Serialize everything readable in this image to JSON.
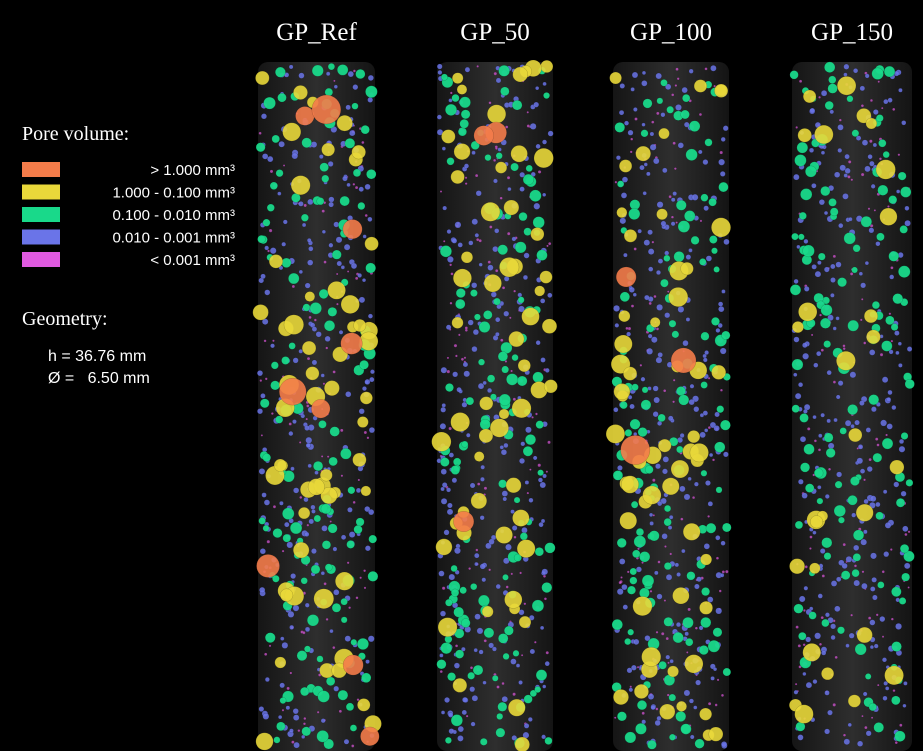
{
  "panels": [
    {
      "label": "GP_Ref"
    },
    {
      "label": "GP_50"
    },
    {
      "label": "GP_100"
    },
    {
      "label": "GP_150"
    }
  ],
  "legend": {
    "title": "Pore volume:",
    "items": [
      {
        "label": "> 1.000 mm³",
        "color": "#f47c4a"
      },
      {
        "label": "1.000 - 0.100 mm³",
        "color": "#e9d83a"
      },
      {
        "label": "0.100 - 0.010 mm³",
        "color": "#19d98a"
      },
      {
        "label": "0.010 - 0.001 mm³",
        "color": "#6a74e8"
      },
      {
        "label": "< 0.001 mm³",
        "color": "#e05ae0"
      }
    ]
  },
  "geometry": {
    "title": "Geometry:",
    "lines": [
      "h = 36.76 mm",
      "Ø =   6.50 mm"
    ]
  }
}
